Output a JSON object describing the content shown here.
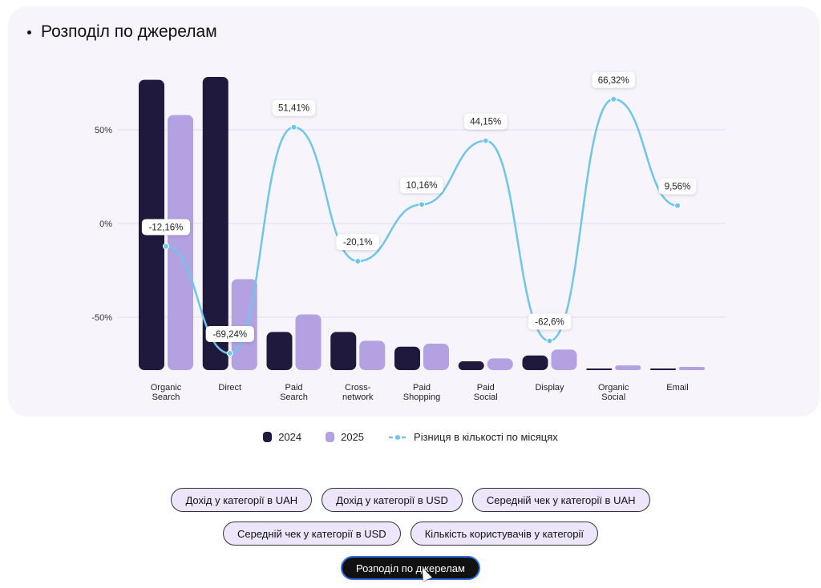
{
  "title": "Розподіл по джерелам",
  "chart_data": {
    "type": "bar+line",
    "title": "Розподіл по джерелам",
    "categories": [
      [
        "Organic",
        "Search"
      ],
      [
        "Direct"
      ],
      [
        "Paid",
        "Search"
      ],
      [
        "Cross-",
        "network"
      ],
      [
        "Paid",
        "Shopping"
      ],
      [
        "Paid",
        "Social"
      ],
      [
        "Display"
      ],
      [
        "Organic",
        "Social"
      ],
      [
        "Email"
      ]
    ],
    "series": [
      {
        "name": "2024",
        "type": "bar",
        "color": "#1f1a3d",
        "values": [
          99,
          100,
          13,
          13,
          8,
          3,
          5,
          0.5,
          0.5
        ]
      },
      {
        "name": "2025",
        "type": "bar",
        "color": "#b4a1e2",
        "values": [
          87,
          31,
          19,
          10,
          9,
          4,
          7,
          1.6,
          1.1
        ]
      },
      {
        "name": "Різниця в кількості по місяцях",
        "type": "line",
        "color": "#6ec6ec",
        "values": [
          -12.16,
          -69.24,
          51.41,
          -20.1,
          10.16,
          44.15,
          -62.6,
          66.32,
          9.56
        ],
        "labels": [
          "-12,16%",
          "-69,24%",
          "51,41%",
          "-20,1%",
          "10,16%",
          "44,15%",
          "-62,6%",
          "66,32%",
          "9,56%"
        ]
      }
    ],
    "y_ticks": [
      {
        "value": 50,
        "label": "50%"
      },
      {
        "value": 0,
        "label": "0%"
      },
      {
        "value": -50,
        "label": "-50%"
      }
    ],
    "ylim_line": [
      -78,
      78
    ],
    "grid": true,
    "legend_position": "bottom"
  },
  "buttons": [
    [
      "Дохід у категорії в UAH",
      "Дохід у категорії в USD",
      "Середній чек у категорії в UAH"
    ],
    [
      "Середній чек у категорії в USD",
      "Кількість користувачів у категорії"
    ],
    [
      "Розподіл по джерелам"
    ]
  ]
}
